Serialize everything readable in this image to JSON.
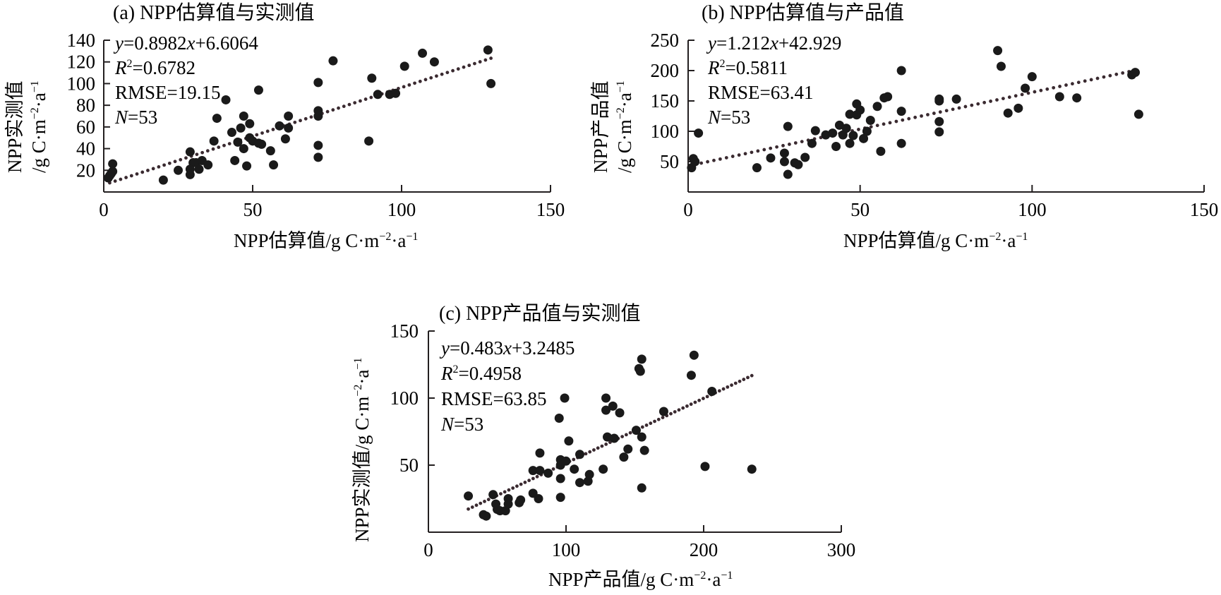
{
  "figure": {
    "panels": [
      {
        "id": "a",
        "title": "(a) NPP估算值与实测值"
      },
      {
        "id": "b",
        "title": "(b) NPP估算值与产品值"
      },
      {
        "id": "c",
        "title": "(c) NPP产品值与实测值"
      }
    ]
  },
  "chart_data": [
    {
      "type": "scatter",
      "title": "(a) NPP估算值与实测值",
      "xlabel": "NPP估算值/g C·m⁻²·a⁻¹",
      "ylabel": "NPP实测值/g C·m⁻²·a⁻¹",
      "ylabel_line1": "NPP实测值",
      "ylabel_line2": "/g C·m⁻²·a⁻¹",
      "xlim": [
        0,
        150
      ],
      "ylim": [
        0,
        140
      ],
      "xticks": [
        0,
        50,
        100,
        150
      ],
      "yticks": [
        20,
        40,
        60,
        80,
        100,
        120,
        140
      ],
      "grid": false,
      "stats": {
        "equation": "y=0.8982x+6.6064",
        "equation_prefix": "y",
        "equation_mid": "=0.8982",
        "equation_var": "x",
        "equation_suffix": "+6.6064",
        "r2_label": "R",
        "r2_value": "=0.6782",
        "rmse": "RMSE=19.15",
        "n_label": "N",
        "n_value": "=53"
      },
      "fit": {
        "slope": 0.8982,
        "intercept": 6.6064,
        "x_range": [
          2,
          130
        ]
      },
      "points": [
        [
          1.5,
          13
        ],
        [
          2,
          15
        ],
        [
          2.5,
          17
        ],
        [
          3,
          19
        ],
        [
          3,
          26
        ],
        [
          20,
          11
        ],
        [
          25,
          20
        ],
        [
          29,
          21
        ],
        [
          29,
          16
        ],
        [
          29,
          37
        ],
        [
          30,
          27
        ],
        [
          31,
          27
        ],
        [
          32,
          21
        ],
        [
          33,
          29
        ],
        [
          35,
          25
        ],
        [
          37,
          47
        ],
        [
          38,
          68
        ],
        [
          41,
          85
        ],
        [
          43,
          55
        ],
        [
          44,
          29
        ],
        [
          45,
          46
        ],
        [
          46,
          59
        ],
        [
          47,
          40
        ],
        [
          47,
          70
        ],
        [
          48,
          24
        ],
        [
          49,
          63
        ],
        [
          49,
          50
        ],
        [
          50,
          47
        ],
        [
          52,
          45
        ],
        [
          52,
          94
        ],
        [
          53,
          44
        ],
        [
          56,
          38
        ],
        [
          57,
          25
        ],
        [
          59,
          61
        ],
        [
          61,
          49
        ],
        [
          62,
          59
        ],
        [
          62,
          70
        ],
        [
          72,
          43
        ],
        [
          72,
          32
        ],
        [
          72,
          70
        ],
        [
          72,
          75
        ],
        [
          72,
          101
        ],
        [
          77,
          121
        ],
        [
          89,
          47
        ],
        [
          90,
          105
        ],
        [
          92,
          90
        ],
        [
          96,
          90
        ],
        [
          98,
          91
        ],
        [
          101,
          116
        ],
        [
          107,
          128
        ],
        [
          111,
          120
        ],
        [
          129,
          131
        ],
        [
          130,
          100
        ]
      ]
    },
    {
      "type": "scatter",
      "title": "(b) NPP估算值与产品值",
      "xlabel": "NPP估算值/g C·m⁻²·a⁻¹",
      "ylabel": "NPP产品值/g C·m⁻²·a⁻¹",
      "ylabel_line1": "NPP产品值",
      "ylabel_line2": "/g C·m⁻²·a⁻¹",
      "xlim": [
        0,
        150
      ],
      "ylim": [
        0,
        250
      ],
      "xticks": [
        0,
        50,
        100,
        150
      ],
      "yticks": [
        50,
        100,
        150,
        200,
        250
      ],
      "grid": false,
      "stats": {
        "equation": "y=1.212x+42.929",
        "equation_prefix": "y",
        "equation_mid": "=1.212",
        "equation_var": "x",
        "equation_suffix": "+42.929",
        "r2_label": "R",
        "r2_value": "=0.5811",
        "rmse": "RMSE=63.41",
        "n_label": "N",
        "n_value": "=53"
      },
      "fit": {
        "slope": 1.212,
        "intercept": 42.929,
        "x_range": [
          2,
          130
        ]
      },
      "points": [
        [
          1,
          40
        ],
        [
          1.5,
          55
        ],
        [
          2,
          50
        ],
        [
          3,
          97
        ],
        [
          20,
          40
        ],
        [
          24,
          56
        ],
        [
          28,
          64
        ],
        [
          28,
          50
        ],
        [
          29,
          29
        ],
        [
          29,
          108
        ],
        [
          31,
          48
        ],
        [
          32,
          45
        ],
        [
          34,
          57
        ],
        [
          36,
          80
        ],
        [
          37,
          101
        ],
        [
          40,
          94
        ],
        [
          42,
          97
        ],
        [
          43,
          75
        ],
        [
          44,
          110
        ],
        [
          45,
          94
        ],
        [
          47,
          128
        ],
        [
          47,
          80
        ],
        [
          48,
          93
        ],
        [
          49,
          145
        ],
        [
          49,
          127
        ],
        [
          50,
          135
        ],
        [
          51,
          88
        ],
        [
          53,
          118
        ],
        [
          55,
          141
        ],
        [
          56,
          67
        ],
        [
          57,
          155
        ],
        [
          58,
          157
        ],
        [
          62,
          200
        ],
        [
          62,
          133
        ],
        [
          62,
          80
        ],
        [
          73,
          150
        ],
        [
          73,
          153
        ],
        [
          73,
          116
        ],
        [
          73,
          99
        ],
        [
          78,
          153
        ],
        [
          90,
          233
        ],
        [
          91,
          207
        ],
        [
          93,
          130
        ],
        [
          96,
          138
        ],
        [
          98,
          171
        ],
        [
          100,
          190
        ],
        [
          108,
          157
        ],
        [
          113,
          155
        ],
        [
          129,
          193
        ],
        [
          130,
          197
        ],
        [
          131,
          128
        ],
        [
          46,
          105
        ],
        [
          52,
          100
        ]
      ]
    },
    {
      "type": "scatter",
      "title": "(c) NPP产品值与实测值",
      "xlabel": "NPP产品值/g C·m⁻²·a⁻¹",
      "ylabel": "NPP实测值/g C·m⁻²·a⁻¹",
      "xlim": [
        0,
        300
      ],
      "ylim": [
        0,
        150
      ],
      "xticks": [
        0,
        100,
        200,
        300
      ],
      "yticks": [
        50,
        100,
        150
      ],
      "grid": false,
      "stats": {
        "equation": "y=0.483x+3.2485",
        "equation_prefix": "y",
        "equation_mid": "=0.483",
        "equation_var": "x",
        "equation_suffix": "+3.2485",
        "r2_label": "R",
        "r2_value": "=0.4958",
        "rmse": "RMSE=63.85",
        "n_label": "N",
        "n_value": "=53"
      },
      "fit": {
        "slope": 0.483,
        "intercept": 3.2485,
        "x_range": [
          29,
          235
        ]
      },
      "points": [
        [
          29,
          27
        ],
        [
          40,
          13
        ],
        [
          42,
          12
        ],
        [
          47,
          28
        ],
        [
          49,
          21
        ],
        [
          50,
          17
        ],
        [
          52,
          16
        ],
        [
          56,
          16
        ],
        [
          58,
          25
        ],
        [
          58,
          21
        ],
        [
          66,
          22
        ],
        [
          67,
          24
        ],
        [
          76,
          46
        ],
        [
          76,
          29
        ],
        [
          80,
          25
        ],
        [
          81,
          59
        ],
        [
          81,
          46
        ],
        [
          87,
          44
        ],
        [
          95,
          85
        ],
        [
          96,
          54
        ],
        [
          96,
          50
        ],
        [
          96,
          40
        ],
        [
          96,
          26
        ],
        [
          99,
          100
        ],
        [
          102,
          68
        ],
        [
          106,
          47
        ],
        [
          110,
          37
        ],
        [
          110,
          58
        ],
        [
          116,
          38
        ],
        [
          117,
          43
        ],
        [
          127,
          47
        ],
        [
          129,
          100
        ],
        [
          129,
          91
        ],
        [
          130,
          71
        ],
        [
          134,
          94
        ],
        [
          135,
          70
        ],
        [
          139,
          89
        ],
        [
          142,
          56
        ],
        [
          145,
          62
        ],
        [
          151,
          76
        ],
        [
          153,
          122
        ],
        [
          154,
          120
        ],
        [
          155,
          129
        ],
        [
          155,
          71
        ],
        [
          155,
          33
        ],
        [
          157,
          61
        ],
        [
          171,
          90
        ],
        [
          191,
          117
        ],
        [
          193,
          132
        ],
        [
          201,
          49
        ],
        [
          206,
          105
        ],
        [
          235,
          47
        ],
        [
          100,
          53
        ]
      ]
    }
  ]
}
